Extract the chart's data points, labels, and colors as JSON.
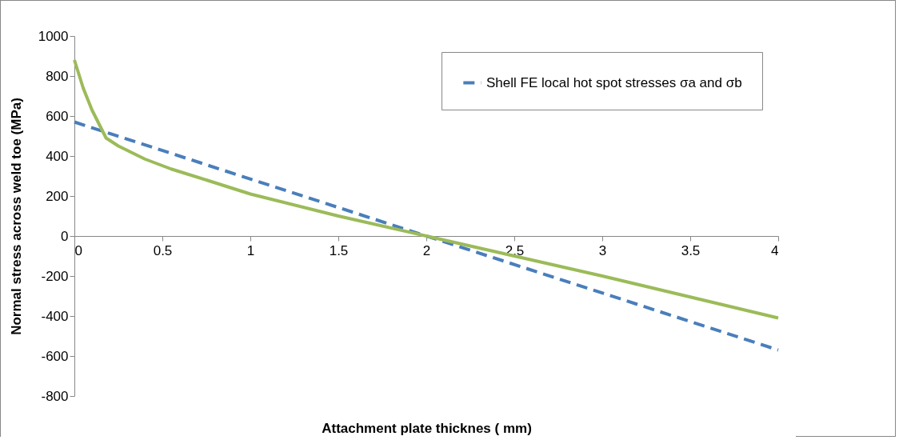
{
  "chart_data": {
    "type": "line",
    "xlabel": "Attachment plate thicknes ( mm)",
    "ylabel": "Normal stress across weld toe  (MPa)",
    "series": [
      {
        "name": "Shell FE local hot spot stresses σa and σb",
        "color": "#4a7ebb",
        "line_style": "dashed",
        "x": [
          0,
          4
        ],
        "values": [
          570,
          -570
        ]
      },
      {
        "color": "#9bbb59",
        "line_style": "solid",
        "x": [
          0,
          0.05,
          0.1,
          0.18,
          0.25,
          0.4,
          0.55,
          0.75,
          1,
          1.5,
          2,
          2.5,
          3,
          3.5,
          4
        ],
        "values": [
          880,
          740,
          630,
          490,
          450,
          385,
          335,
          280,
          210,
          100,
          0,
          -100,
          -200,
          -305,
          -410
        ]
      }
    ],
    "xlim": [
      0,
      4
    ],
    "xticks": [
      0,
      0.5,
      1,
      1.5,
      2,
      2.5,
      3,
      3.5,
      4
    ],
    "ylim": [
      -800,
      1000
    ],
    "yticks": [
      -800,
      -600,
      -400,
      -200,
      0,
      200,
      400,
      600,
      800,
      1000
    ],
    "legend": "top right",
    "grid": false,
    "marker": "none"
  }
}
